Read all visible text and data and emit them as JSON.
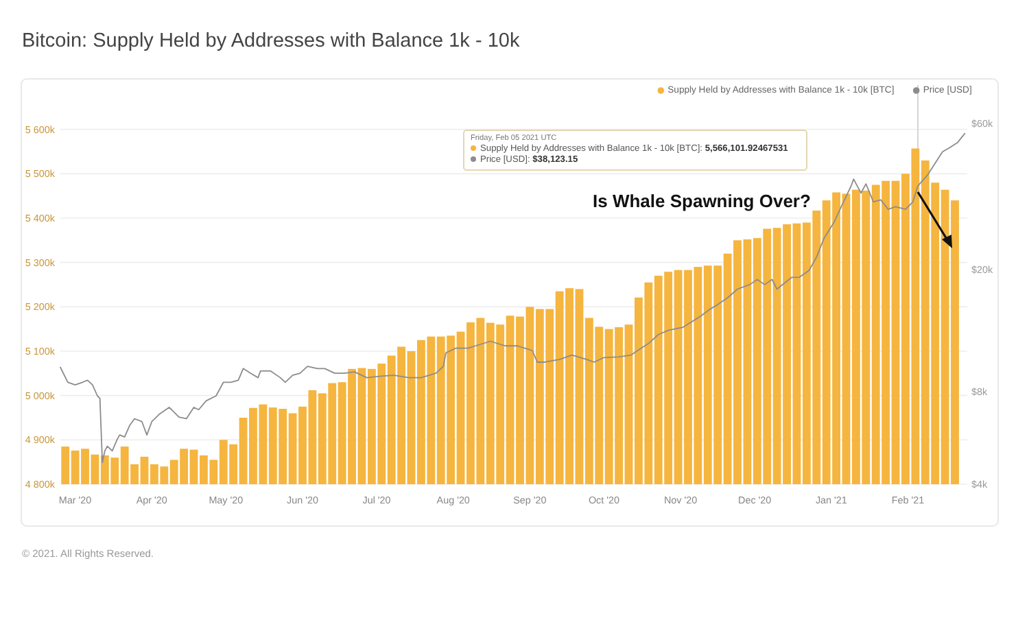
{
  "chart_data": {
    "type": "bar",
    "title": "Bitcoin: Supply Held by Addresses with Balance 1k - 10k",
    "xlim": [
      "2020-02-24",
      "2021-02-25"
    ],
    "xticks": [
      {
        "value": "2020-03-01",
        "label": "Mar '20"
      },
      {
        "value": "2020-04-01",
        "label": "Apr '20"
      },
      {
        "value": "2020-05-01",
        "label": "May '20"
      },
      {
        "value": "2020-06-01",
        "label": "Jun '20"
      },
      {
        "value": "2020-07-01",
        "label": "Jul '20"
      },
      {
        "value": "2020-08-01",
        "label": "Aug '20"
      },
      {
        "value": "2020-09-01",
        "label": "Sep '20"
      },
      {
        "value": "2020-10-01",
        "label": "Oct '20"
      },
      {
        "value": "2020-11-01",
        "label": "Nov '20"
      },
      {
        "value": "2020-12-01",
        "label": "Dec '20"
      },
      {
        "value": "2021-01-01",
        "label": "Jan '21"
      },
      {
        "value": "2021-02-01",
        "label": "Feb '21"
      }
    ],
    "ylim": [
      4800000,
      5700000
    ],
    "yticks": [
      {
        "value": 4800000,
        "label": "4 800k"
      },
      {
        "value": 4900000,
        "label": "4 900k"
      },
      {
        "value": 5000000,
        "label": "5 000k"
      },
      {
        "value": 5100000,
        "label": "5 100k"
      },
      {
        "value": 5200000,
        "label": "5 200k"
      },
      {
        "value": 5300000,
        "label": "5 300k"
      },
      {
        "value": 5400000,
        "label": "5 400k"
      },
      {
        "value": 5500000,
        "label": "5 500k"
      },
      {
        "value": 5600000,
        "label": "5 600k"
      }
    ],
    "y2lim": [
      4000,
      80000
    ],
    "y2ticks": [
      {
        "value": 4000,
        "label": "$4k"
      },
      {
        "value": 8000,
        "label": "$8k"
      },
      {
        "value": 20000,
        "label": "$20k"
      },
      {
        "value": 60000,
        "label": "$60k"
      }
    ],
    "log": "y2",
    "grid": "y",
    "legend": "top right",
    "ref_lines": [
      {
        "axis": "x",
        "value": "2021-02-05",
        "color": "#cccccc"
      }
    ],
    "series": [
      {
        "name": "Supply Held by Addresses with Balance 1k - 10k [BTC]",
        "color": "#f5b53f",
        "x": [
          "2020-02-26",
          "2020-03-01",
          "2020-03-05",
          "2020-03-09",
          "2020-03-13",
          "2020-03-17",
          "2020-03-21",
          "2020-03-25",
          "2020-03-29",
          "2020-04-02",
          "2020-04-06",
          "2020-04-10",
          "2020-04-14",
          "2020-04-18",
          "2020-04-22",
          "2020-04-26",
          "2020-04-30",
          "2020-05-04",
          "2020-05-08",
          "2020-05-12",
          "2020-05-16",
          "2020-05-20",
          "2020-05-24",
          "2020-05-28",
          "2020-06-01",
          "2020-06-05",
          "2020-06-09",
          "2020-06-13",
          "2020-06-17",
          "2020-06-21",
          "2020-06-25",
          "2020-06-29",
          "2020-07-03",
          "2020-07-07",
          "2020-07-11",
          "2020-07-15",
          "2020-07-19",
          "2020-07-23",
          "2020-07-27",
          "2020-07-31",
          "2020-08-04",
          "2020-08-08",
          "2020-08-12",
          "2020-08-16",
          "2020-08-20",
          "2020-08-24",
          "2020-08-28",
          "2020-09-01",
          "2020-09-05",
          "2020-09-09",
          "2020-09-13",
          "2020-09-17",
          "2020-09-21",
          "2020-09-25",
          "2020-09-29",
          "2020-10-03",
          "2020-10-07",
          "2020-10-11",
          "2020-10-15",
          "2020-10-19",
          "2020-10-23",
          "2020-10-27",
          "2020-10-31",
          "2020-11-04",
          "2020-11-08",
          "2020-11-12",
          "2020-11-16",
          "2020-11-20",
          "2020-11-24",
          "2020-11-28",
          "2020-12-02",
          "2020-12-06",
          "2020-12-10",
          "2020-12-14",
          "2020-12-18",
          "2020-12-22",
          "2020-12-26",
          "2020-12-30",
          "2021-01-03",
          "2021-01-07",
          "2021-01-11",
          "2021-01-15",
          "2021-01-19",
          "2021-01-23",
          "2021-01-27",
          "2021-01-31",
          "2021-02-04",
          "2021-02-08",
          "2021-02-12",
          "2021-02-16",
          "2021-02-20"
        ],
        "values": [
          4885000,
          4876000,
          4880000,
          4867000,
          4865000,
          4860000,
          4885000,
          4845000,
          4862000,
          4845000,
          4840000,
          4855000,
          4880000,
          4878000,
          4865000,
          4855000,
          4900000,
          4890000,
          4950000,
          4972000,
          4980000,
          4973000,
          4970000,
          4960000,
          4975000,
          5012000,
          5005000,
          5028000,
          5030000,
          5060000,
          5062000,
          5060000,
          5072000,
          5090000,
          5110000,
          5100000,
          5125000,
          5133000,
          5133000,
          5135000,
          5144000,
          5165000,
          5175000,
          5164000,
          5160000,
          5180000,
          5178000,
          5200000,
          5195000,
          5195000,
          5235000,
          5242000,
          5240000,
          5175000,
          5155000,
          5150000,
          5154000,
          5160000,
          5221000,
          5255000,
          5270000,
          5279000,
          5283000,
          5283000,
          5290000,
          5293000,
          5293000,
          5320000,
          5350000,
          5352000,
          5355000,
          5376000,
          5378000,
          5386000,
          5388000,
          5390000,
          5417000,
          5440000,
          5458000,
          5455000,
          5464000,
          5462000,
          5475000,
          5484000,
          5484000,
          5500000,
          5557000,
          5530000,
          5480000,
          5464000,
          5440000
        ]
      },
      {
        "name": "Price [USD]",
        "type": "line",
        "axis": "y2",
        "color": "#8c8c8c",
        "x": [
          "2020-02-24",
          "2020-02-27",
          "2020-03-01",
          "2020-03-04",
          "2020-03-06",
          "2020-03-08",
          "2020-03-10",
          "2020-03-11",
          "2020-03-12",
          "2020-03-13",
          "2020-03-14",
          "2020-03-16",
          "2020-03-18",
          "2020-03-19",
          "2020-03-21",
          "2020-03-23",
          "2020-03-25",
          "2020-03-28",
          "2020-03-30",
          "2020-04-01",
          "2020-04-04",
          "2020-04-08",
          "2020-04-09",
          "2020-04-12",
          "2020-04-15",
          "2020-04-18",
          "2020-04-20",
          "2020-04-23",
          "2020-04-27",
          "2020-04-30",
          "2020-05-03",
          "2020-05-06",
          "2020-05-08",
          "2020-05-11",
          "2020-05-14",
          "2020-05-15",
          "2020-05-19",
          "2020-05-23",
          "2020-05-25",
          "2020-05-28",
          "2020-05-31",
          "2020-06-03",
          "2020-06-07",
          "2020-06-10",
          "2020-06-14",
          "2020-06-18",
          "2020-06-22",
          "2020-06-27",
          "2020-07-03",
          "2020-07-08",
          "2020-07-14",
          "2020-07-19",
          "2020-07-25",
          "2020-07-28",
          "2020-07-29",
          "2020-08-02",
          "2020-08-07",
          "2020-08-10",
          "2020-08-16",
          "2020-08-22",
          "2020-08-27",
          "2020-09-02",
          "2020-09-04",
          "2020-09-07",
          "2020-09-13",
          "2020-09-18",
          "2020-09-24",
          "2020-09-27",
          "2020-10-01",
          "2020-10-07",
          "2020-10-12",
          "2020-10-16",
          "2020-10-19",
          "2020-10-23",
          "2020-10-27",
          "2020-11-02",
          "2020-11-09",
          "2020-11-13",
          "2020-11-16",
          "2020-11-20",
          "2020-11-24",
          "2020-11-29",
          "2020-12-02",
          "2020-12-05",
          "2020-12-08",
          "2020-12-10",
          "2020-12-16",
          "2020-12-19",
          "2020-12-23",
          "2020-12-26",
          "2020-12-29",
          "2021-01-02",
          "2021-01-05",
          "2021-01-09",
          "2021-01-10",
          "2021-01-13",
          "2021-01-15",
          "2021-01-18",
          "2021-01-21",
          "2021-01-24",
          "2021-01-27",
          "2021-01-31",
          "2021-02-03",
          "2021-02-05",
          "2021-02-09",
          "2021-02-12",
          "2021-02-15",
          "2021-02-18",
          "2021-02-21",
          "2021-02-24"
        ],
        "values": [
          9620,
          8600,
          8430,
          8600,
          8730,
          8430,
          7760,
          7620,
          4710,
          5140,
          5320,
          5140,
          5600,
          5790,
          5700,
          6210,
          6540,
          6400,
          5790,
          6400,
          6760,
          7120,
          7000,
          6620,
          6540,
          7120,
          7000,
          7480,
          7760,
          8600,
          8600,
          8730,
          9530,
          9200,
          8900,
          9360,
          9360,
          8900,
          8600,
          9060,
          9200,
          9690,
          9530,
          9530,
          9200,
          9200,
          9300,
          8900,
          9000,
          9060,
          8900,
          8900,
          9200,
          9690,
          10720,
          11100,
          11100,
          11300,
          11700,
          11300,
          11300,
          10900,
          10000,
          10000,
          10200,
          10550,
          10200,
          10000,
          10350,
          10400,
          10550,
          11100,
          11500,
          12300,
          12700,
          13000,
          14100,
          14900,
          15400,
          16200,
          17300,
          17900,
          18600,
          17900,
          18600,
          17300,
          18900,
          18900,
          19900,
          22000,
          25300,
          28500,
          32100,
          37500,
          39500,
          35600,
          38100,
          33300,
          33800,
          31500,
          32100,
          31500,
          33300,
          37500,
          40800,
          44500,
          48500,
          50100,
          51900,
          55600
        ]
      }
    ],
    "annotations": [
      "Friday, Feb 05 2021 UTC",
      "Supply Held by Addresses with Balance 1k - 10k [BTC]: 5,566,101.92467531",
      "Price [USD]: $38,123.15",
      "Is Whale Spawning Over?",
      "© 2021. All Rights Reserved."
    ]
  }
}
